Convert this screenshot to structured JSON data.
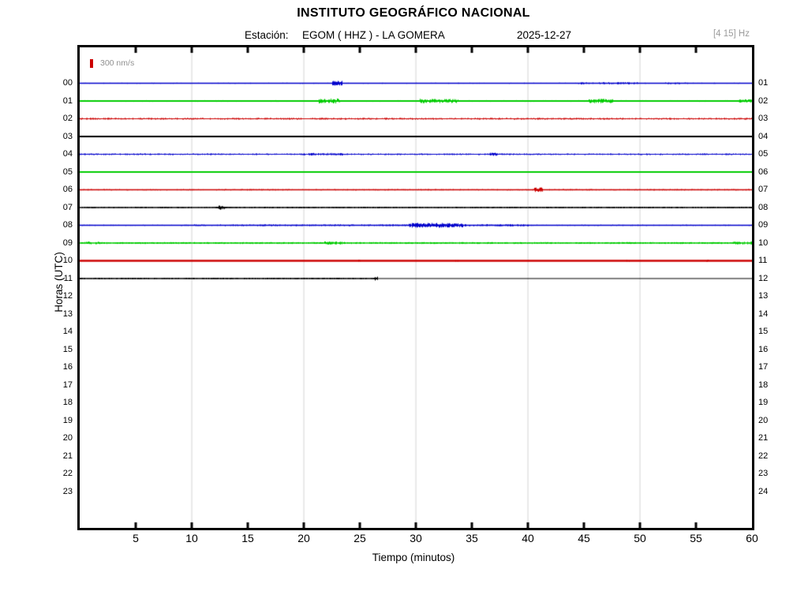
{
  "header": {
    "title": "INSTITUTO GEOGRÁFICO NACIONAL",
    "station_label": "Estación:",
    "station_value": "EGOM ( HHZ ) - LA GOMERA",
    "date": "2025-12-27",
    "filter_band": "[4 15] Hz"
  },
  "legend": {
    "label": "300 nm/s",
    "color": "#cc0000"
  },
  "axes": {
    "x_title": "Tiempo (minutos)",
    "y_title": "Horas (UTC)",
    "x_tick_labels": [
      5,
      10,
      15,
      20,
      25,
      30,
      35,
      40,
      45,
      50,
      55,
      60
    ],
    "x_minor_tick_step": 5,
    "gridline_minutes": [
      10,
      20,
      30,
      40,
      50
    ],
    "left_hour_labels": [
      "00",
      "01",
      "02",
      "03",
      "04",
      "05",
      "06",
      "07",
      "08",
      "09",
      "10",
      "11",
      "12",
      "13",
      "14",
      "15",
      "16",
      "17",
      "18",
      "19",
      "20",
      "21",
      "22",
      "23"
    ],
    "right_hour_labels": [
      "01",
      "02",
      "03",
      "04",
      "05",
      "06",
      "07",
      "08",
      "09",
      "10",
      "11",
      "12",
      "13",
      "14",
      "15",
      "16",
      "17",
      "18",
      "19",
      "20",
      "21",
      "22",
      "23",
      "24"
    ]
  },
  "colors": {
    "grid": "#dcdcdc",
    "axis": "#000000",
    "muted_text": "#9b9b9b",
    "trace_cycle": [
      "#0000cc",
      "#00cc00",
      "#cc0000",
      "#000000"
    ]
  },
  "chart_data": {
    "type": "line",
    "title": "INSTITUTO GEOGRÁFICO NACIONAL",
    "xlabel": "Tiempo (minutos)",
    "ylabel": "Horas (UTC)",
    "x_range_minutes": [
      0,
      60
    ],
    "hours_with_data": [
      "00",
      "01",
      "02",
      "03",
      "04",
      "05",
      "06",
      "07",
      "08",
      "09",
      "10",
      "11"
    ],
    "last_trace_end_minute": 26.6,
    "amplitude_scale_label": "300 nm/s",
    "traces": [
      {
        "hour": 0,
        "color": "#0000cc",
        "thickness": 1.6,
        "base_amp": 0.7,
        "density": 0.28,
        "end_min": 60,
        "bursts": [
          {
            "start": 22.4,
            "end": 23.4,
            "amp": 3.0,
            "density": 0.95
          },
          {
            "start": 44.5,
            "end": 50.0,
            "amp": 1.4,
            "density": 0.5
          },
          {
            "start": 52.0,
            "end": 54.5,
            "amp": 1.1,
            "density": 0.45
          }
        ]
      },
      {
        "hour": 1,
        "color": "#00cc00",
        "thickness": 1.8,
        "base_amp": 1.1,
        "density": 0.55,
        "end_min": 60,
        "bursts": [
          {
            "start": 21.3,
            "end": 23.2,
            "amp": 3.2,
            "density": 0.95
          },
          {
            "start": 30.3,
            "end": 33.8,
            "amp": 2.8,
            "density": 0.9
          },
          {
            "start": 45.3,
            "end": 47.6,
            "amp": 2.8,
            "density": 0.9
          },
          {
            "start": 58.8,
            "end": 60.0,
            "amp": 2.2,
            "density": 0.9
          }
        ]
      },
      {
        "hour": 2,
        "color": "#cc0000",
        "thickness": 1.2,
        "base_amp": 1.2,
        "density": 0.65,
        "end_min": 60,
        "bursts": []
      },
      {
        "hour": 3,
        "color": "#000000",
        "thickness": 2.2,
        "base_amp": 0.3,
        "density": 0.06,
        "end_min": 60,
        "bursts": [
          {
            "start": 19.4,
            "end": 19.6,
            "amp": 1.2,
            "density": 0.7
          },
          {
            "start": 24.5,
            "end": 24.7,
            "amp": 1.0,
            "density": 0.6
          }
        ]
      },
      {
        "hour": 4,
        "color": "#0000cc",
        "thickness": 1.2,
        "base_amp": 1.1,
        "density": 0.6,
        "end_min": 60,
        "bursts": [
          {
            "start": 20.0,
            "end": 23.5,
            "amp": 1.7,
            "density": 0.75
          },
          {
            "start": 36.5,
            "end": 37.2,
            "amp": 2.0,
            "density": 0.9
          }
        ]
      },
      {
        "hour": 5,
        "color": "#00cc00",
        "thickness": 2.2,
        "base_amp": 0.35,
        "density": 0.12,
        "end_min": 60,
        "bursts": [
          {
            "start": 36.0,
            "end": 36.3,
            "amp": 1.2,
            "density": 0.7
          }
        ]
      },
      {
        "hour": 6,
        "color": "#cc0000",
        "thickness": 1.6,
        "base_amp": 0.9,
        "density": 0.5,
        "end_min": 60,
        "bursts": [
          {
            "start": 40.5,
            "end": 41.3,
            "amp": 3.0,
            "density": 0.97
          }
        ]
      },
      {
        "hour": 7,
        "color": "#000000",
        "thickness": 1.4,
        "base_amp": 1.0,
        "density": 0.55,
        "end_min": 60,
        "bursts": [
          {
            "start": 12.3,
            "end": 12.9,
            "amp": 2.8,
            "density": 0.95
          }
        ]
      },
      {
        "hour": 8,
        "color": "#0000cc",
        "thickness": 1.6,
        "base_amp": 0.8,
        "density": 0.35,
        "end_min": 60,
        "bursts": [
          {
            "start": 10.0,
            "end": 29.3,
            "amp": 1.2,
            "density": 0.55
          },
          {
            "start": 29.3,
            "end": 34.2,
            "amp": 3.0,
            "density": 0.92
          },
          {
            "start": 34.2,
            "end": 40.0,
            "amp": 1.4,
            "density": 0.6
          }
        ]
      },
      {
        "hour": 9,
        "color": "#00cc00",
        "thickness": 1.4,
        "base_amp": 1.2,
        "density": 0.65,
        "end_min": 60,
        "bursts": [
          {
            "start": 0.3,
            "end": 1.8,
            "amp": 1.8,
            "density": 0.8
          },
          {
            "start": 21.8,
            "end": 23.6,
            "amp": 2.2,
            "density": 0.85
          },
          {
            "start": 58.3,
            "end": 60.0,
            "amp": 2.0,
            "density": 0.85
          }
        ]
      },
      {
        "hour": 10,
        "color": "#cc0000",
        "thickness": 2.4,
        "base_amp": 0.3,
        "density": 0.08,
        "end_min": 60,
        "bursts": [
          {
            "start": 24.8,
            "end": 25.1,
            "amp": 1.2,
            "density": 0.6
          },
          {
            "start": 33.5,
            "end": 33.8,
            "amp": 1.3,
            "density": 0.6
          },
          {
            "start": 48.8,
            "end": 49.1,
            "amp": 1.2,
            "density": 0.6
          },
          {
            "start": 55.8,
            "end": 56.1,
            "amp": 1.3,
            "density": 0.6
          }
        ]
      },
      {
        "hour": 11,
        "color": "#000000",
        "thickness": 1.4,
        "base_amp": 1.0,
        "density": 0.55,
        "end_min": 26.6,
        "flat_after": true,
        "bursts": [
          {
            "start": 26.2,
            "end": 26.6,
            "amp": 2.6,
            "density": 0.95
          }
        ]
      }
    ]
  }
}
